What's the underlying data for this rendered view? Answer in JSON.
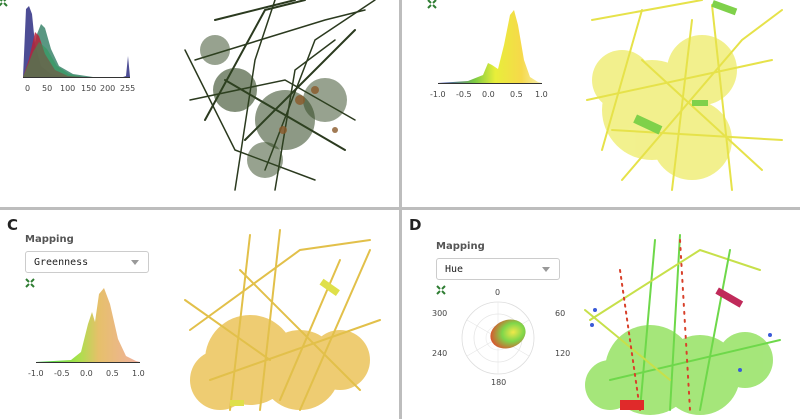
{
  "panels": {
    "a": {
      "hist_ticks": [
        "0",
        "50",
        "100",
        "150",
        "200",
        "255"
      ]
    },
    "b": {
      "dist_ticks": [
        "-1.0",
        "-0.5",
        "0.0",
        "0.5",
        "1.0"
      ]
    },
    "c": {
      "letter": "C",
      "mapping_label": "Mapping",
      "mapping_value": "Greenness",
      "dist_ticks": [
        "-1.0",
        "-0.5",
        "0.0",
        "0.5",
        "1.0"
      ]
    },
    "d": {
      "letter": "D",
      "mapping_label": "Mapping",
      "mapping_value": "Hue",
      "polar_ticks": [
        "0",
        "60",
        "120",
        "180",
        "240",
        "300"
      ]
    }
  },
  "colors": {
    "accent": "#2e7d32",
    "divider": "#bdbdbd"
  },
  "icons": {
    "expand": "expand-arrows-icon"
  }
}
